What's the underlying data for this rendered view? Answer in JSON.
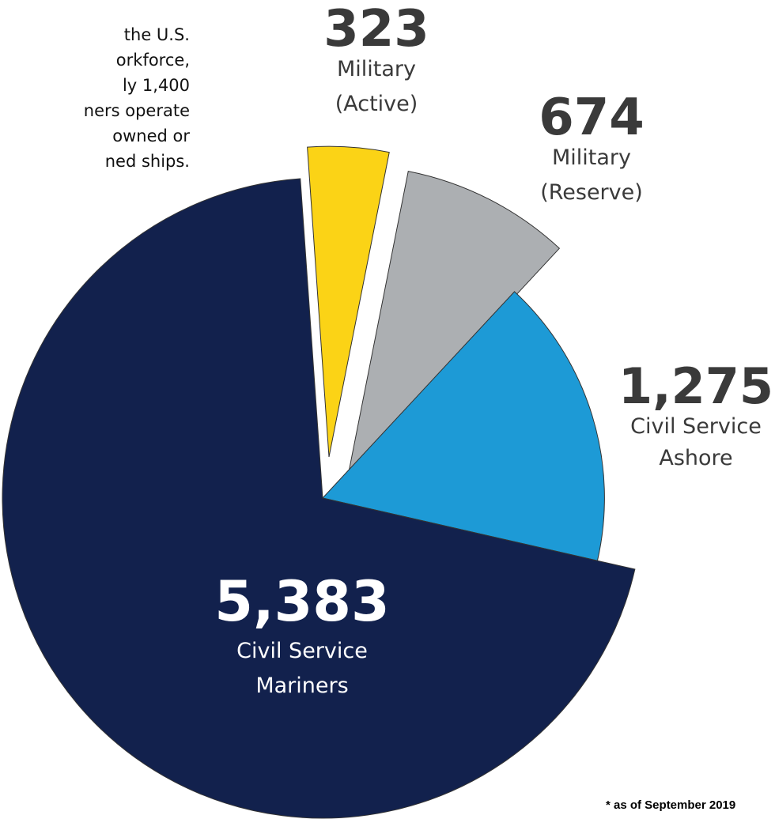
{
  "intro_text": {
    "lines": [
      "the U.S.",
      "orkforce,",
      "ly 1,400",
      "ners operate",
      "owned or",
      "ned ships."
    ]
  },
  "chart_data": {
    "type": "pie",
    "title": "",
    "slices": [
      {
        "value": 323,
        "value_label": "323",
        "label_lines": [
          "Military",
          "(Active)"
        ],
        "color": "#fbd316"
      },
      {
        "value": 674,
        "value_label": "674",
        "label_lines": [
          "Military",
          "(Reserve)"
        ],
        "color": "#acafb2"
      },
      {
        "value": 1275,
        "value_label": "1,275",
        "label_lines": [
          "Civil Service",
          "Ashore"
        ],
        "color": "#1d9ad6"
      },
      {
        "value": 5383,
        "value_label": "5,383",
        "label_lines": [
          "Civil Service",
          "Mariners"
        ],
        "color": "#12214d"
      }
    ]
  },
  "footnote": "* as of September 2019"
}
